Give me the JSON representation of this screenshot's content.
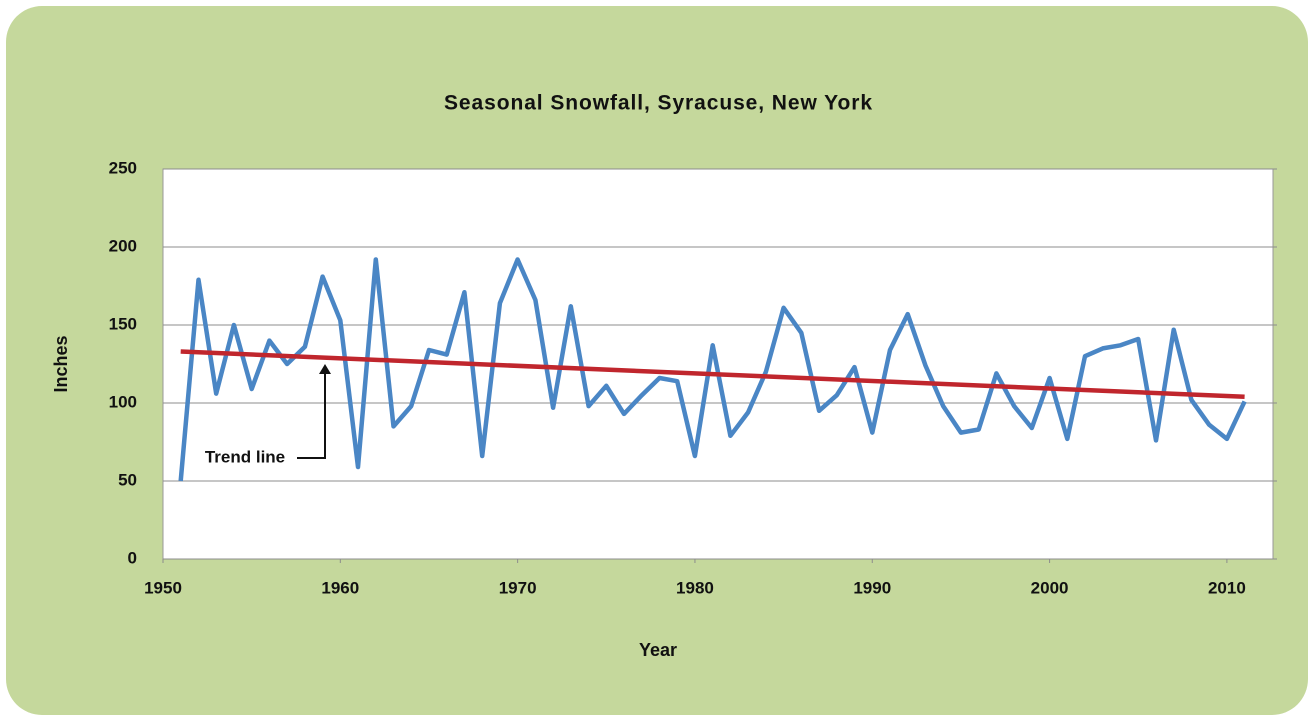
{
  "chart_data": {
    "type": "line",
    "title": "Seasonal Snowfall, Syracuse, New York",
    "x_label": "Year",
    "y_label": "Inches",
    "x": [
      1951,
      1952,
      1953,
      1954,
      1955,
      1956,
      1957,
      1958,
      1959,
      1960,
      1961,
      1962,
      1963,
      1964,
      1965,
      1966,
      1967,
      1968,
      1969,
      1970,
      1971,
      1972,
      1973,
      1974,
      1975,
      1976,
      1977,
      1978,
      1979,
      1980,
      1981,
      1982,
      1983,
      1984,
      1985,
      1986,
      1987,
      1988,
      1989,
      1990,
      1991,
      1992,
      1993,
      1994,
      1995,
      1996,
      1997,
      1998,
      1999,
      2000,
      2001,
      2002,
      2003,
      2004,
      2005,
      2006,
      2007,
      2008,
      2009,
      2010,
      2011
    ],
    "series": [
      {
        "name": "Seasonal snowfall",
        "color": "#4a86c5",
        "values": [
          50,
          179,
          106,
          150,
          109,
          140,
          125,
          136,
          181,
          153,
          59,
          192,
          85,
          98,
          134,
          131,
          171,
          66,
          164,
          192,
          166,
          97,
          162,
          98,
          111,
          93,
          105,
          116,
          114,
          66,
          137,
          79,
          94,
          120,
          161,
          145,
          95,
          105,
          123,
          81,
          134,
          157,
          124,
          98,
          81,
          83,
          119,
          98,
          84,
          116,
          77,
          130,
          135,
          137,
          141,
          76,
          147,
          102,
          86,
          77,
          101
        ]
      }
    ],
    "trend": {
      "name": "Trend line",
      "color": "#c0262d",
      "x": [
        1951,
        2011
      ],
      "values": [
        133,
        104
      ]
    },
    "xlim": [
      1950,
      2012.6
    ],
    "ylim": [
      0,
      250
    ],
    "xticks": [
      1950,
      1960,
      1970,
      1980,
      1990,
      2000,
      2010
    ],
    "yticks": [
      0,
      50,
      100,
      150,
      200,
      250
    ],
    "grid": true
  }
}
